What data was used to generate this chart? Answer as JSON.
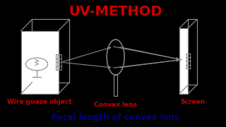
{
  "title": "UV-METHOD",
  "title_color": "#cc0000",
  "title_fontsize": 14,
  "subtitle": "Focal length of convex lens",
  "subtitle_color": "#00008b",
  "subtitle_fontsize": 8.5,
  "bg_color": "#ffffff",
  "border_color": "#000000",
  "label_color": "#cc0000",
  "label_fontsize": 6.5,
  "wire_guaze_label": "Wire guaze object",
  "convex_lens_label": "Convex lens",
  "screen_label": "Screen",
  "draw_color": "#888888",
  "lw": 0.9
}
